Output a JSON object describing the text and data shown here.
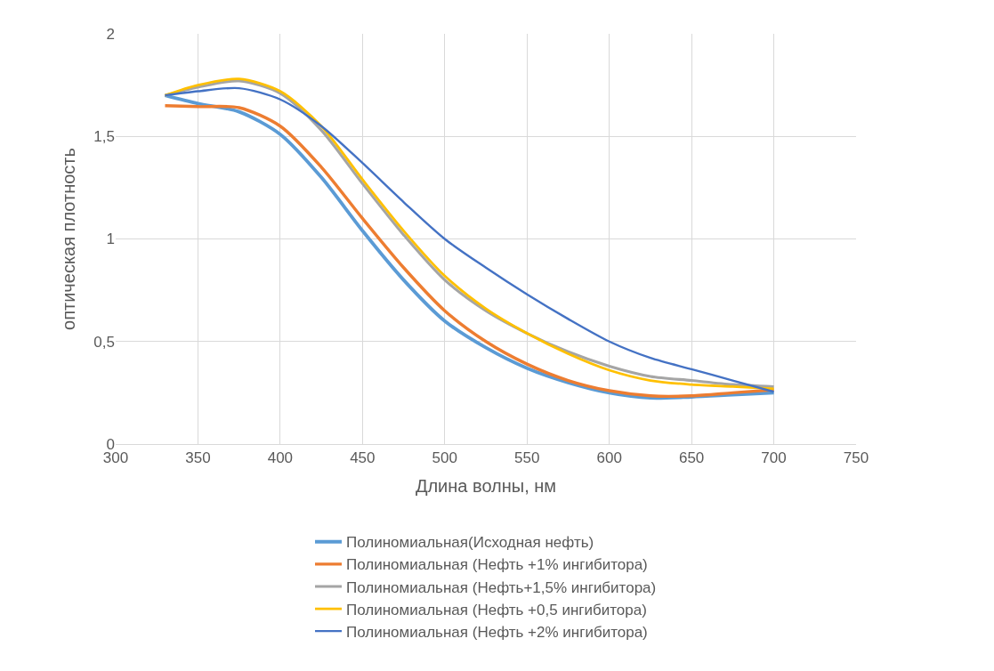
{
  "chart_data": {
    "type": "line",
    "xlabel": "Длина волны, нм",
    "ylabel": "оптическая плотность",
    "x": [
      330,
      350,
      375,
      400,
      425,
      450,
      475,
      500,
      525,
      550,
      575,
      600,
      625,
      650,
      675,
      700
    ],
    "series": [
      {
        "name": "Полиномиальная(Исходная нефть)",
        "color": "#5b9bd5",
        "values": [
          1.7,
          1.66,
          1.62,
          1.51,
          1.3,
          1.04,
          0.8,
          0.6,
          0.47,
          0.37,
          0.3,
          0.25,
          0.225,
          0.23,
          0.24,
          0.25
        ]
      },
      {
        "name": "Полиномиальная (Нефть +1% ингибитора)",
        "color": "#ed7d31",
        "values": [
          1.65,
          1.645,
          1.64,
          1.55,
          1.35,
          1.1,
          0.86,
          0.65,
          0.5,
          0.39,
          0.31,
          0.26,
          0.235,
          0.235,
          0.25,
          0.265
        ]
      },
      {
        "name": "Полиномиальная (Нефть+1,5% ингибитора)",
        "color": "#a5a5a5",
        "values": [
          1.7,
          1.74,
          1.77,
          1.71,
          1.53,
          1.27,
          1.02,
          0.8,
          0.65,
          0.54,
          0.45,
          0.38,
          0.33,
          0.31,
          0.29,
          0.28
        ]
      },
      {
        "name": "Полиномиальная (Нефть +0,5 ингибитора)",
        "color": "#ffc000",
        "values": [
          1.7,
          1.75,
          1.78,
          1.72,
          1.55,
          1.29,
          1.04,
          0.82,
          0.66,
          0.54,
          0.44,
          0.36,
          0.31,
          0.29,
          0.28,
          0.27
        ]
      },
      {
        "name": "Полиномиальная (Нефть +2% ингибитора)",
        "color": "#4472c4",
        "values": [
          1.7,
          1.72,
          1.735,
          1.68,
          1.55,
          1.37,
          1.18,
          1.0,
          0.86,
          0.73,
          0.61,
          0.5,
          0.42,
          0.365,
          0.31,
          0.255
        ]
      }
    ],
    "xlim": [
      300,
      750
    ],
    "xticks": [
      300,
      350,
      400,
      450,
      500,
      550,
      600,
      650,
      700,
      750
    ],
    "ylim": [
      0,
      2
    ],
    "yticks": [
      0,
      {
        "value": 0.5,
        "label": "0,5"
      },
      1,
      {
        "value": 1.5,
        "label": "1,5"
      },
      2
    ],
    "grid": true,
    "legend": "bottom",
    "marker": "none",
    "line_style": "solid"
  }
}
